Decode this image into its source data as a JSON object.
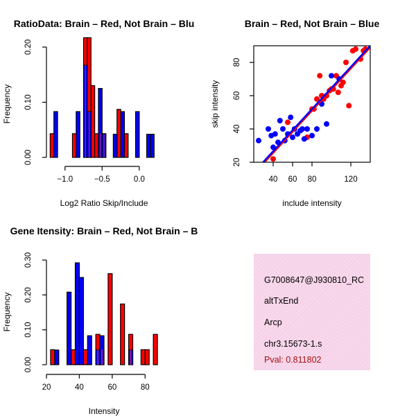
{
  "colors": {
    "brain": "#ff0000",
    "not_brain": "#0000ff",
    "overlap": "#a020a0",
    "info_bg": "#f8d8ec",
    "pval": "#a01010"
  },
  "info_box": {
    "event_id": "G7008647@J930810_RC",
    "event_type": "altTxEnd",
    "gene": "Arcp",
    "location": "chr3.15673-1.s",
    "pval": "Pval: 0.811802"
  },
  "chart_data": [
    {
      "type": "bar",
      "title": "RatioData: Brain – Red, Not Brain – Blu",
      "xlabel": "Log2 Ratio Skip/Include",
      "ylabel": "Frequency",
      "xlim": [
        -1.25,
        0.3
      ],
      "ylim": [
        0,
        0.22
      ],
      "xticks": [
        -1.0,
        -0.5,
        0.0
      ],
      "xtick_labels": [
        "−1.0",
        "−0.5",
        "0.0"
      ],
      "yticks": [
        0.0,
        0.1,
        0.2
      ],
      "ytick_labels": [
        "0.00",
        "0.10",
        "0.20"
      ],
      "bin_width": 0.05,
      "series": [
        {
          "name": "Brain",
          "color": "red",
          "bins": [
            {
              "x": -1.2,
              "v": 0.043
            },
            {
              "x": -0.9,
              "v": 0.043
            },
            {
              "x": -0.75,
              "v": 0.217
            },
            {
              "x": -0.7,
              "v": 0.217
            },
            {
              "x": -0.65,
              "v": 0.13
            },
            {
              "x": -0.6,
              "v": 0.043
            },
            {
              "x": -0.55,
              "v": 0.043
            },
            {
              "x": -0.5,
              "v": 0.043
            },
            {
              "x": -0.3,
              "v": 0.087
            },
            {
              "x": -0.2,
              "v": 0.043
            }
          ]
        },
        {
          "name": "Not Brain",
          "color": "blue",
          "bins": [
            {
              "x": -1.15,
              "v": 0.083
            },
            {
              "x": -0.85,
              "v": 0.083
            },
            {
              "x": -0.75,
              "v": 0.167
            },
            {
              "x": -0.7,
              "v": 0.083
            },
            {
              "x": -0.55,
              "v": 0.125
            },
            {
              "x": -0.5,
              "v": 0.042
            },
            {
              "x": -0.35,
              "v": 0.042
            },
            {
              "x": -0.25,
              "v": 0.083
            },
            {
              "x": -0.05,
              "v": 0.083
            },
            {
              "x": 0.1,
              "v": 0.042
            },
            {
              "x": 0.15,
              "v": 0.042
            }
          ]
        }
      ]
    },
    {
      "type": "scatter",
      "title": "Brain – Red, Not Brain – Blue",
      "xlabel": "include intensity",
      "ylabel": "skip intensity",
      "xlim": [
        20,
        140
      ],
      "ylim": [
        20,
        90
      ],
      "xticks": [
        40,
        60,
        80,
        120
      ],
      "yticks": [
        20,
        40,
        60,
        80
      ],
      "series": [
        {
          "name": "Brain",
          "color": "red",
          "x": [
            40,
            55,
            75,
            80,
            82,
            85,
            88,
            90,
            92,
            95,
            98,
            100,
            102,
            105,
            107,
            110,
            112,
            115,
            118,
            122,
            125,
            130,
            133,
            135
          ],
          "y": [
            22,
            44,
            35,
            52,
            52,
            58,
            72,
            60,
            58,
            60,
            63,
            64,
            64,
            72,
            62,
            66,
            68,
            80,
            54,
            87,
            88,
            82,
            87,
            88
          ]
        },
        {
          "name": "Not Brain",
          "color": "blue",
          "x": [
            25,
            35,
            38,
            40,
            42,
            45,
            47,
            50,
            52,
            55,
            58,
            60,
            62,
            65,
            68,
            70,
            72,
            75,
            80,
            85,
            90,
            95,
            100,
            108
          ],
          "y": [
            33,
            40,
            36,
            29,
            37,
            32,
            45,
            40,
            33,
            37,
            47,
            35,
            40,
            37,
            39,
            40,
            34,
            40,
            36,
            40,
            55,
            43,
            72,
            70
          ]
        }
      ],
      "fit_lines": [
        {
          "color": "red",
          "x": [
            28,
            140
          ],
          "y": [
            18,
            89
          ]
        },
        {
          "color": "blue",
          "x": [
            28,
            140
          ],
          "y": [
            19,
            90
          ]
        }
      ]
    },
    {
      "type": "bar",
      "title": "Gene Itensity: Brain – Red, Not Brain – B",
      "xlabel": "Intensity",
      "ylabel": "Frequency",
      "xlim": [
        20,
        90
      ],
      "ylim": [
        0,
        0.32
      ],
      "xticks": [
        20,
        40,
        60,
        80
      ],
      "xtick_labels": [
        "20",
        "40",
        "60",
        "80"
      ],
      "yticks": [
        0.0,
        0.1,
        0.2,
        0.3
      ],
      "ytick_labels": [
        "0.00",
        "0.10",
        "0.20",
        "0.30"
      ],
      "bin_width": 2.5,
      "series": [
        {
          "name": "Brain",
          "color": "red",
          "bins": [
            {
              "x": 22.5,
              "v": 0.043
            },
            {
              "x": 35,
              "v": 0.043
            },
            {
              "x": 42.5,
              "v": 0.043
            },
            {
              "x": 50,
              "v": 0.087
            },
            {
              "x": 52.5,
              "v": 0.043
            },
            {
              "x": 57.5,
              "v": 0.261
            },
            {
              "x": 65,
              "v": 0.174
            },
            {
              "x": 70,
              "v": 0.087
            },
            {
              "x": 77.5,
              "v": 0.043
            },
            {
              "x": 80,
              "v": 0.043
            },
            {
              "x": 85,
              "v": 0.087
            }
          ]
        },
        {
          "name": "Not Brain",
          "color": "blue",
          "bins": [
            {
              "x": 25,
              "v": 0.042
            },
            {
              "x": 32.5,
              "v": 0.208
            },
            {
              "x": 37.5,
              "v": 0.292
            },
            {
              "x": 40,
              "v": 0.25
            },
            {
              "x": 45,
              "v": 0.083
            },
            {
              "x": 50,
              "v": 0.042
            },
            {
              "x": 52.5,
              "v": 0.083
            },
            {
              "x": 70,
              "v": 0.042
            }
          ]
        }
      ]
    }
  ]
}
